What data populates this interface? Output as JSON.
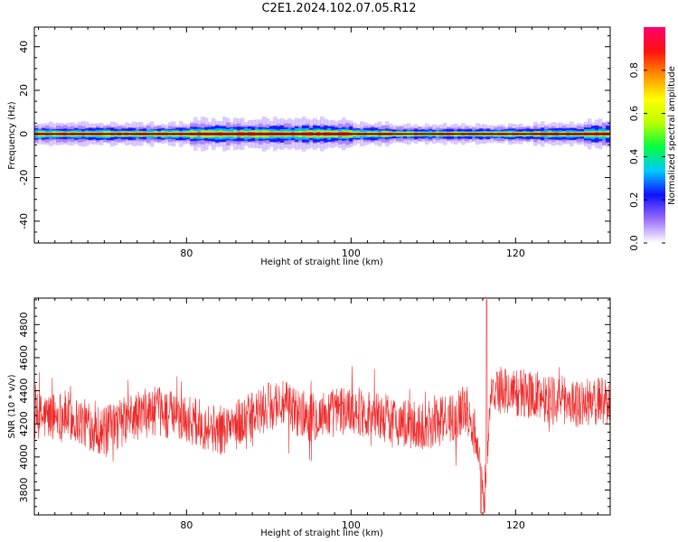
{
  "title": "C2E1.2024.102.07.05.R12",
  "chart_data": [
    {
      "type": "heatmap",
      "xlabel": "Height of straight line (km)",
      "ylabel": "Frequency (Hz)",
      "xlim": [
        61.5,
        131.5
      ],
      "ylim": [
        -50,
        49
      ],
      "xticks": [
        "80",
        "100",
        "120"
      ],
      "xtick_values": [
        80,
        100,
        120
      ],
      "yticks": [
        "-40",
        "-20",
        "0",
        "20",
        "40"
      ],
      "ytick_values": [
        -40,
        -20,
        0,
        20,
        40
      ],
      "signal_frequency_hz": 0,
      "colorbar": {
        "label": "Normalized spectral amplitude",
        "range": [
          0,
          1
        ],
        "ticks": [
          "0.0",
          "0.2",
          "0.4",
          "0.6",
          "0.8"
        ],
        "tick_values": [
          0.0,
          0.2,
          0.4,
          0.6,
          0.8
        ],
        "colors": [
          "#ffffff",
          "#9a6cff",
          "#1010ff",
          "#00c8ff",
          "#00ff40",
          "#b8ff00",
          "#ffff00",
          "#ff9000",
          "#ff1010",
          "#ff0070"
        ]
      },
      "series_color": "#000000"
    },
    {
      "type": "line",
      "xlabel": "Height of straight line (km)",
      "ylabel": "SNR (10 * v/v)",
      "xlim": [
        61.5,
        131.5
      ],
      "ylim": [
        3650,
        4960
      ],
      "xticks": [
        "80",
        "100",
        "120"
      ],
      "xtick_values": [
        80,
        100,
        120
      ],
      "yticks": [
        "3800",
        "4000",
        "4200",
        "4400",
        "4600",
        "4800"
      ],
      "ytick_values": [
        3800,
        4000,
        4200,
        4400,
        4600,
        4800
      ],
      "line_color": "#ee2a2a",
      "trend": {
        "x": [
          61.5,
          65,
          70,
          73,
          76,
          80,
          84,
          88,
          91,
          95,
          100,
          104,
          108,
          112,
          114,
          115.5,
          116.2,
          117,
          120,
          125,
          128,
          131.5
        ],
        "y": [
          4230,
          4260,
          4150,
          4230,
          4280,
          4230,
          4160,
          4240,
          4330,
          4240,
          4290,
          4240,
          4180,
          4230,
          4300,
          4050,
          3700,
          4400,
          4390,
          4350,
          4320,
          4350
        ]
      },
      "extremes": {
        "max": [
          116.5,
          4950
        ],
        "min": [
          115.8,
          3660
        ]
      }
    }
  ]
}
